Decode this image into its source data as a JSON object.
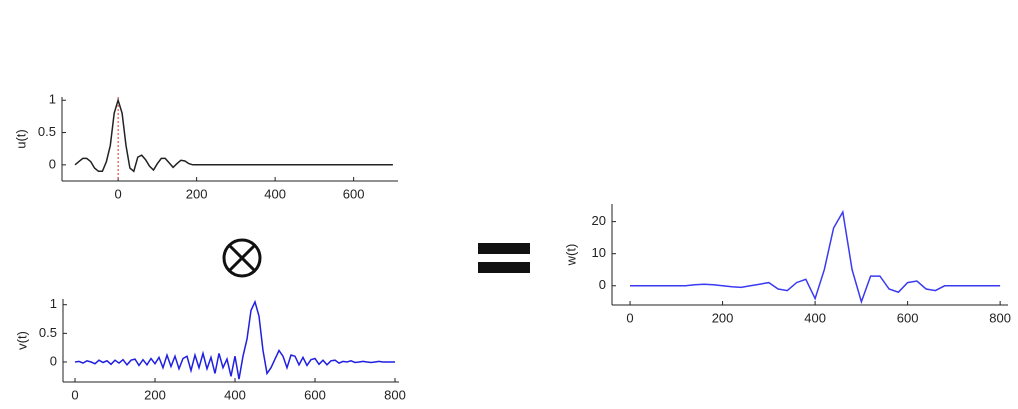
{
  "chart_data": [
    {
      "type": "line",
      "ylabel": "u(t)",
      "color": "#222222",
      "x": [
        -110,
        -100,
        -90,
        -80,
        -70,
        -60,
        -50,
        -40,
        -30,
        -20,
        -10,
        0,
        10,
        20,
        30,
        40,
        50,
        60,
        70,
        80,
        90,
        100,
        110,
        120,
        130,
        140,
        150,
        160,
        170,
        180,
        190,
        200,
        700
      ],
      "values": [
        0,
        0.05,
        0.1,
        0.1,
        0.05,
        -0.05,
        -0.1,
        -0.1,
        0.05,
        0.3,
        0.8,
        1,
        0.8,
        0.3,
        -0.05,
        -0.1,
        0.12,
        0.15,
        0.08,
        -0.02,
        -0.08,
        0.02,
        0.1,
        0.1,
        0.03,
        -0.04,
        0.02,
        0.07,
        0.06,
        0.02,
        0,
        0,
        0
      ],
      "xlim": [
        -143,
        713
      ],
      "ylim": [
        -0.25,
        1.05
      ],
      "xticks": [
        0,
        200,
        400,
        600
      ],
      "yticks": [
        0,
        0.5,
        1
      ],
      "reference_x": 0,
      "reference_color": "#e03030"
    },
    {
      "type": "line",
      "ylabel": "v(t)",
      "color": "#1f1fe0",
      "x": [
        0,
        10,
        20,
        30,
        40,
        50,
        60,
        70,
        80,
        90,
        100,
        110,
        120,
        130,
        140,
        150,
        160,
        170,
        180,
        190,
        200,
        210,
        220,
        230,
        240,
        250,
        260,
        270,
        280,
        290,
        300,
        310,
        320,
        330,
        340,
        350,
        360,
        370,
        380,
        390,
        400,
        410,
        420,
        430,
        440,
        450,
        460,
        470,
        480,
        490,
        500,
        510,
        520,
        530,
        540,
        550,
        560,
        570,
        580,
        590,
        600,
        610,
        620,
        630,
        640,
        650,
        660,
        670,
        680,
        690,
        700,
        710,
        720,
        730,
        740,
        750,
        760,
        770,
        780,
        790,
        800
      ],
      "values": [
        0,
        0.01,
        -0.02,
        0.02,
        0,
        -0.03,
        0.03,
        -0.01,
        0.02,
        -0.04,
        0.03,
        -0.02,
        0.04,
        -0.05,
        0.03,
        0.05,
        -0.06,
        0.04,
        -0.05,
        0.06,
        -0.03,
        0.08,
        -0.1,
        0.12,
        -0.08,
        0.1,
        -0.12,
        0.06,
        0.1,
        -0.15,
        0.12,
        -0.1,
        0.15,
        -0.12,
        0.08,
        -0.2,
        0.15,
        -0.1,
        0.05,
        -0.25,
        0.1,
        -0.3,
        0.1,
        0.4,
        0.9,
        1.05,
        0.8,
        0.2,
        -0.2,
        -0.1,
        0.05,
        0.2,
        0.1,
        -0.1,
        0.12,
        0.1,
        -0.05,
        0.08,
        -0.06,
        0.04,
        0.06,
        -0.04,
        0.03,
        -0.05,
        0.02,
        0.03,
        -0.02,
        0.01,
        0,
        0.02,
        -0.01,
        0,
        0.01,
        0,
        -0.01,
        0,
        0.01,
        0,
        0,
        0,
        0
      ],
      "xlim": [
        -30,
        810
      ],
      "ylim": [
        -0.35,
        1.1
      ],
      "xticks": [
        0,
        200,
        400,
        600,
        800
      ],
      "yticks": [
        0,
        0.5,
        1
      ]
    },
    {
      "type": "line",
      "ylabel": "w(t)",
      "color": "#3a3af0",
      "x": [
        0,
        20,
        40,
        60,
        80,
        100,
        120,
        140,
        160,
        180,
        200,
        220,
        240,
        260,
        280,
        300,
        320,
        340,
        360,
        380,
        400,
        420,
        440,
        460,
        480,
        500,
        520,
        540,
        560,
        580,
        600,
        620,
        640,
        660,
        680,
        700,
        720,
        740,
        760,
        780,
        800
      ],
      "values": [
        0,
        0,
        0,
        0,
        0,
        0,
        0,
        0.3,
        0.5,
        0.3,
        0,
        -0.3,
        -0.5,
        0,
        0.5,
        1,
        -1,
        -1.5,
        1,
        2,
        -4,
        5,
        18,
        23,
        5,
        -5,
        3,
        3,
        -1,
        -2,
        1,
        1.5,
        -1,
        -1.5,
        0,
        0,
        0,
        0,
        0,
        0,
        0
      ],
      "xlim": [
        -39,
        817
      ],
      "ylim": [
        -6,
        25.5
      ],
      "xticks": [
        0,
        200,
        400,
        600,
        800
      ],
      "yticks": [
        0,
        10,
        20
      ]
    }
  ]
}
